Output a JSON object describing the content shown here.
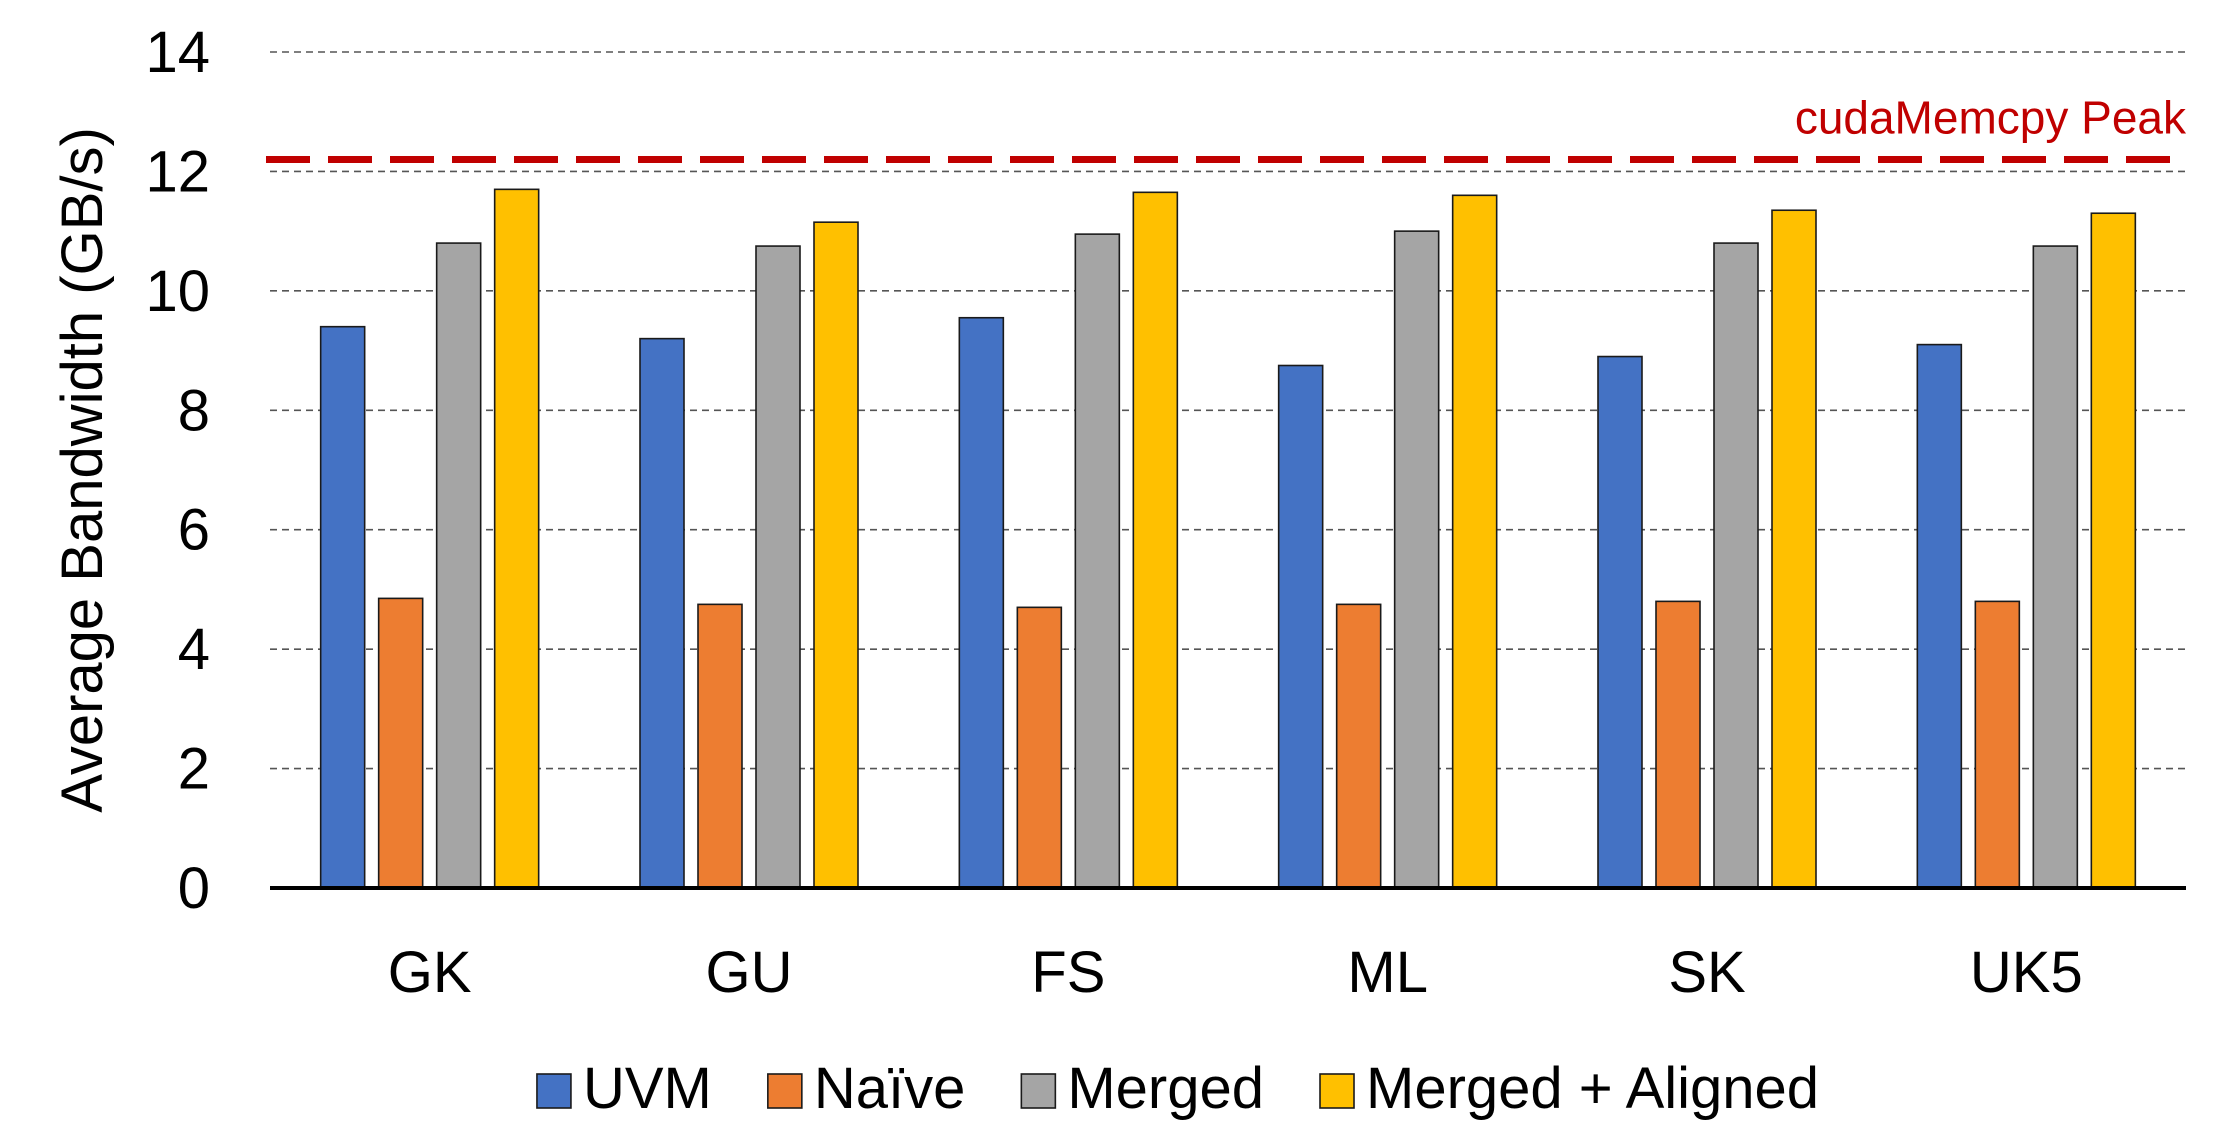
{
  "chart_data": {
    "type": "bar",
    "title": "",
    "xlabel": "",
    "ylabel": "Average Bandwidth (GB/s)",
    "ylim": [
      0,
      14
    ],
    "yticks": [
      0,
      2,
      4,
      6,
      8,
      10,
      12,
      14
    ],
    "grid": true,
    "legend_position": "bottom",
    "categories": [
      "GK",
      "GU",
      "FS",
      "ML",
      "SK",
      "UK5"
    ],
    "series": [
      {
        "name": "UVM",
        "color": "#4472C4",
        "values": [
          9.4,
          9.2,
          9.55,
          8.75,
          8.9,
          9.1
        ]
      },
      {
        "name": "Naïve",
        "color": "#ED7D31",
        "values": [
          4.85,
          4.75,
          4.7,
          4.75,
          4.8,
          4.8
        ]
      },
      {
        "name": "Merged",
        "color": "#A5A5A5",
        "values": [
          10.8,
          10.75,
          10.95,
          11.0,
          10.8,
          10.75
        ]
      },
      {
        "name": "Merged + Aligned",
        "color": "#FFC000",
        "values": [
          11.7,
          11.15,
          11.65,
          11.6,
          11.35,
          11.3
        ]
      }
    ],
    "reference_line": {
      "label": "cudaMemcpy Peak",
      "value": 12.2,
      "color": "#C00000"
    }
  }
}
